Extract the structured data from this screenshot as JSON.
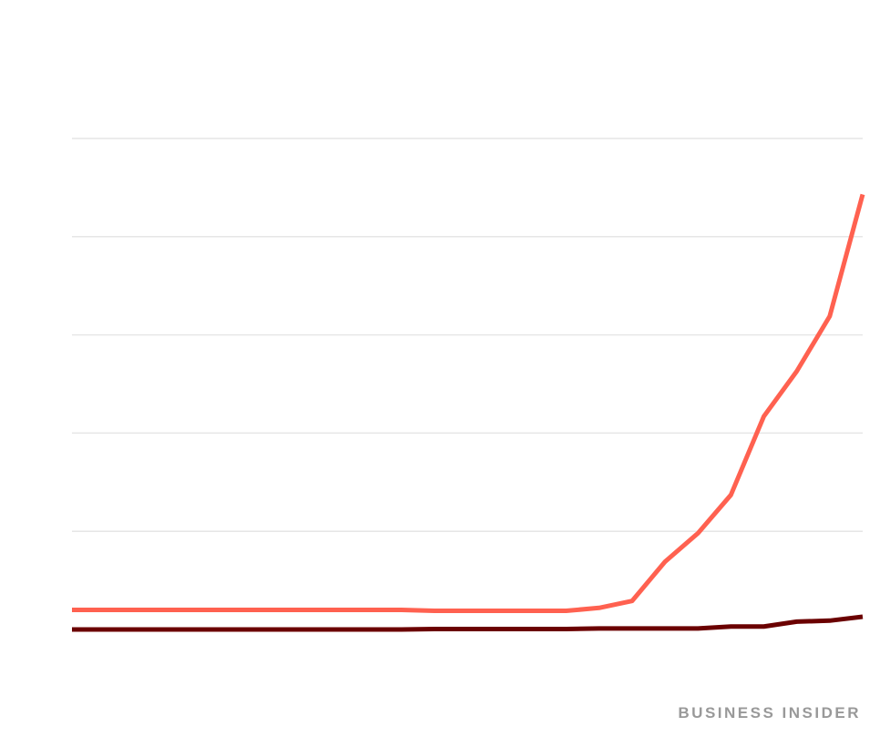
{
  "chart_data": {
    "type": "line",
    "credit": "BUSINESS INSIDER",
    "categories": [
      null,
      null,
      null,
      null,
      null,
      null,
      null,
      null,
      null,
      null,
      null,
      null,
      null,
      null,
      null,
      null,
      null,
      null,
      null,
      null,
      null,
      null,
      null,
      null,
      null
    ],
    "series": [
      {
        "color": "#ff6150",
        "values": [
          0.2,
          0.2,
          0.2,
          0.2,
          0.2,
          0.2,
          0.2,
          0.2,
          0.2,
          0.2,
          0.2,
          0.19,
          0.19,
          0.19,
          0.19,
          0.19,
          0.22,
          0.29,
          0.69,
          0.98,
          1.37,
          2.17,
          2.63,
          3.19,
          4.43
        ]
      },
      {
        "color": "#6b0000",
        "values": [
          0,
          0,
          0,
          0,
          0,
          0,
          0,
          0,
          0,
          0,
          0,
          0.005,
          0.005,
          0.005,
          0.005,
          0.005,
          0.01,
          0.01,
          0.01,
          0.01,
          0.03,
          0.03,
          0.08,
          0.09,
          0.13
        ]
      }
    ],
    "ylim": [
      0,
      5
    ],
    "yticks": [
      0,
      1,
      2,
      3,
      4,
      5
    ],
    "grid": true
  }
}
